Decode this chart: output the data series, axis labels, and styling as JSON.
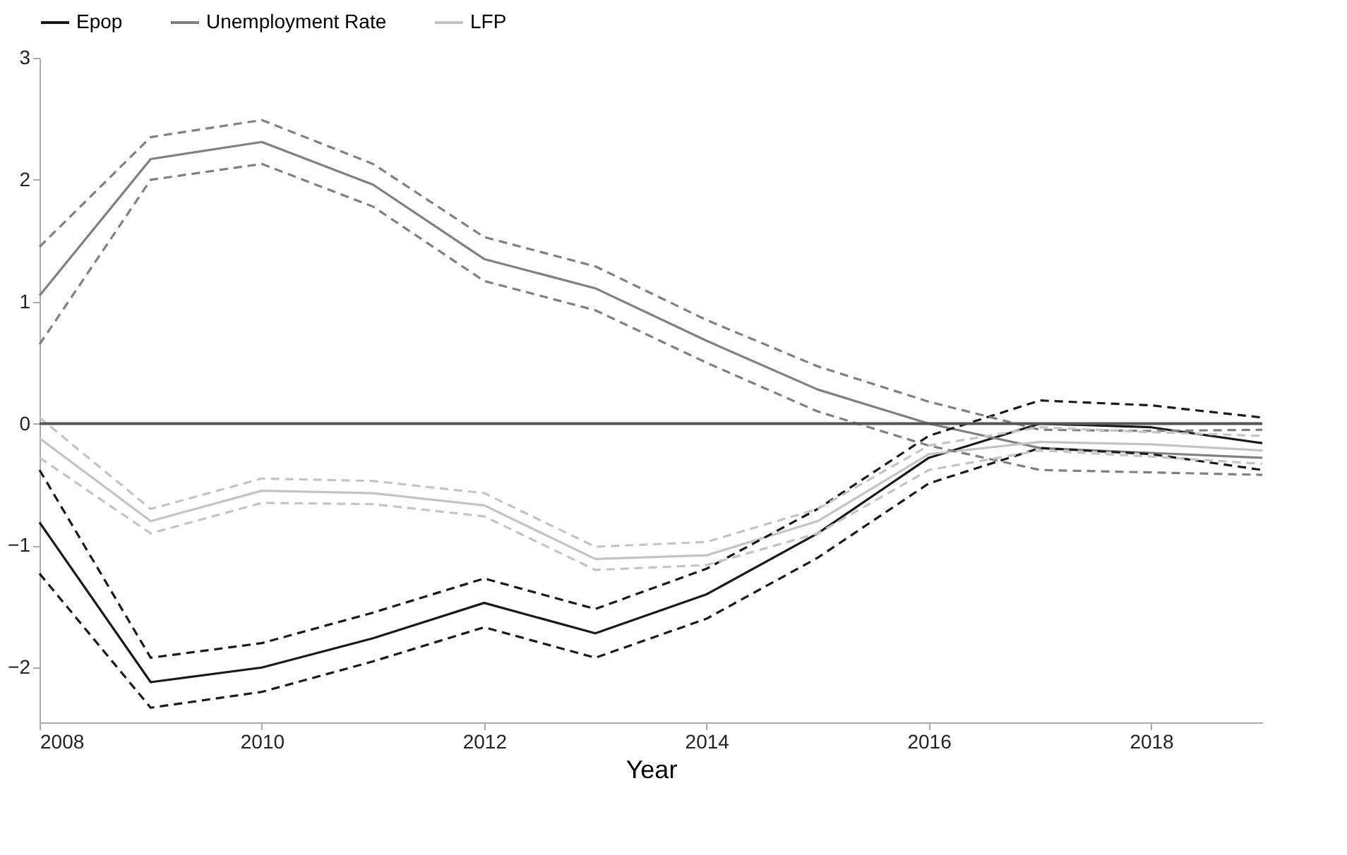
{
  "chart_data": {
    "type": "line",
    "xlabel": "Year",
    "xlim": [
      2008,
      2019
    ],
    "xticks": [
      2008,
      2010,
      2012,
      2014,
      2016,
      2018
    ],
    "ylim": [
      -2.45,
      3
    ],
    "yticks": [
      -2,
      -1,
      0,
      1,
      2,
      3
    ],
    "grid": false,
    "legend": "top",
    "marker": "none",
    "x": [
      2008,
      2009,
      2010,
      2011,
      2012,
      2013,
      2014,
      2015,
      2016,
      2017,
      2018,
      2019
    ],
    "ref_lines": [
      {
        "axis": "y",
        "value": 0,
        "color": "#555555",
        "line_style": "solid"
      }
    ],
    "series": [
      {
        "name": "Epop",
        "color": "#1a1a1a",
        "line_style": "solid",
        "values": [
          -0.81,
          -2.12,
          -2.0,
          -1.76,
          -1.47,
          -1.72,
          -1.4,
          -0.9,
          -0.28,
          0.0,
          -0.03,
          -0.16
        ]
      },
      {
        "name": "Unemployment Rate",
        "color": "#808080",
        "line_style": "solid",
        "values": [
          1.05,
          2.17,
          2.31,
          1.96,
          1.35,
          1.11,
          0.68,
          0.28,
          0.0,
          -0.2,
          -0.24,
          -0.28
        ]
      },
      {
        "name": "LFP",
        "color": "#c4c4c4",
        "line_style": "solid",
        "values": [
          -0.12,
          -0.8,
          -0.55,
          -0.57,
          -0.67,
          -1.11,
          -1.08,
          -0.8,
          -0.25,
          -0.15,
          -0.17,
          -0.22
        ]
      },
      {
        "color": "#1a1a1a",
        "line_style": "dashed",
        "values": [
          -0.38,
          -1.92,
          -1.8,
          -1.55,
          -1.27,
          -1.52,
          -1.19,
          -0.7,
          -0.1,
          0.19,
          0.15,
          0.05
        ]
      },
      {
        "color": "#1a1a1a",
        "line_style": "dashed",
        "values": [
          -1.23,
          -2.33,
          -2.2,
          -1.95,
          -1.67,
          -1.92,
          -1.6,
          -1.1,
          -0.49,
          -0.2,
          -0.25,
          -0.38
        ]
      },
      {
        "color": "#808080",
        "line_style": "dashed",
        "values": [
          1.45,
          2.35,
          2.49,
          2.13,
          1.53,
          1.29,
          0.85,
          0.47,
          0.18,
          -0.05,
          -0.06,
          -0.05
        ]
      },
      {
        "color": "#808080",
        "line_style": "dashed",
        "values": [
          0.65,
          2.0,
          2.13,
          1.78,
          1.17,
          0.93,
          0.5,
          0.1,
          -0.18,
          -0.38,
          -0.4,
          -0.42
        ]
      },
      {
        "color": "#c4c4c4",
        "line_style": "dashed",
        "values": [
          0.05,
          -0.7,
          -0.45,
          -0.47,
          -0.57,
          -1.01,
          -0.97,
          -0.7,
          -0.18,
          -0.03,
          -0.07,
          -0.1
        ]
      },
      {
        "color": "#c4c4c4",
        "line_style": "dashed",
        "values": [
          -0.28,
          -0.9,
          -0.65,
          -0.66,
          -0.76,
          -1.2,
          -1.16,
          -0.9,
          -0.38,
          -0.22,
          -0.27,
          -0.33
        ]
      }
    ]
  }
}
